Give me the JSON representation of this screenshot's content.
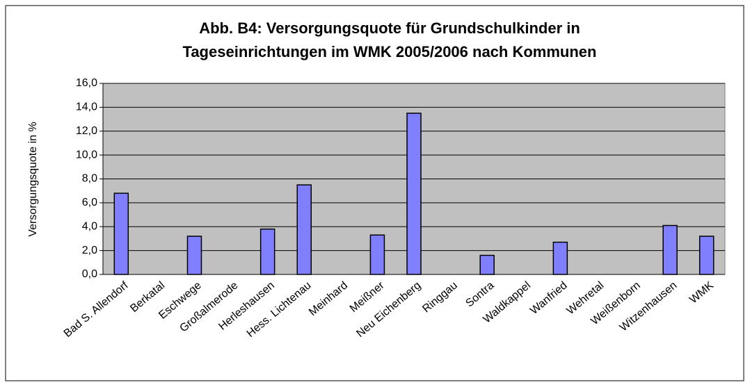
{
  "chart_data": {
    "type": "bar",
    "title": [
      "Abb. B4: Versorgungsquote für Grundschulkinder in",
      "Tageseinrichtungen im WMK 2005/2006 nach Kommunen"
    ],
    "ylabel": "Versorgungsquote in %",
    "categories": [
      "Bad S. Allendorf",
      "Berkatal",
      "Eschwege",
      "Großalmerode",
      "Herleshausen",
      "Hess. Lichtenau",
      "Meinhard",
      "Meißner",
      "Neu Eichenberg",
      "Ringgau",
      "Sontra",
      "Waldkappel",
      "Wanfried",
      "Wehretal",
      "Weißenborn",
      "Witzenhausen",
      "WMK"
    ],
    "values": [
      6.8,
      0,
      3.2,
      0,
      3.8,
      7.5,
      0,
      3.3,
      13.5,
      0,
      1.6,
      0,
      2.7,
      0,
      0,
      4.1,
      3.2
    ],
    "color": "#8080ff",
    "ylim": [
      0,
      16
    ],
    "yticks": [
      {
        "value": 0,
        "label": "0,0"
      },
      {
        "value": 2,
        "label": "2,0"
      },
      {
        "value": 4,
        "label": "4,0"
      },
      {
        "value": 6,
        "label": "6,0"
      },
      {
        "value": 8,
        "label": "8,0"
      },
      {
        "value": 10,
        "label": "10,0"
      },
      {
        "value": 12,
        "label": "12,0"
      },
      {
        "value": 14,
        "label": "14,0"
      },
      {
        "value": 16,
        "label": "16,0"
      }
    ],
    "grid": true
  }
}
